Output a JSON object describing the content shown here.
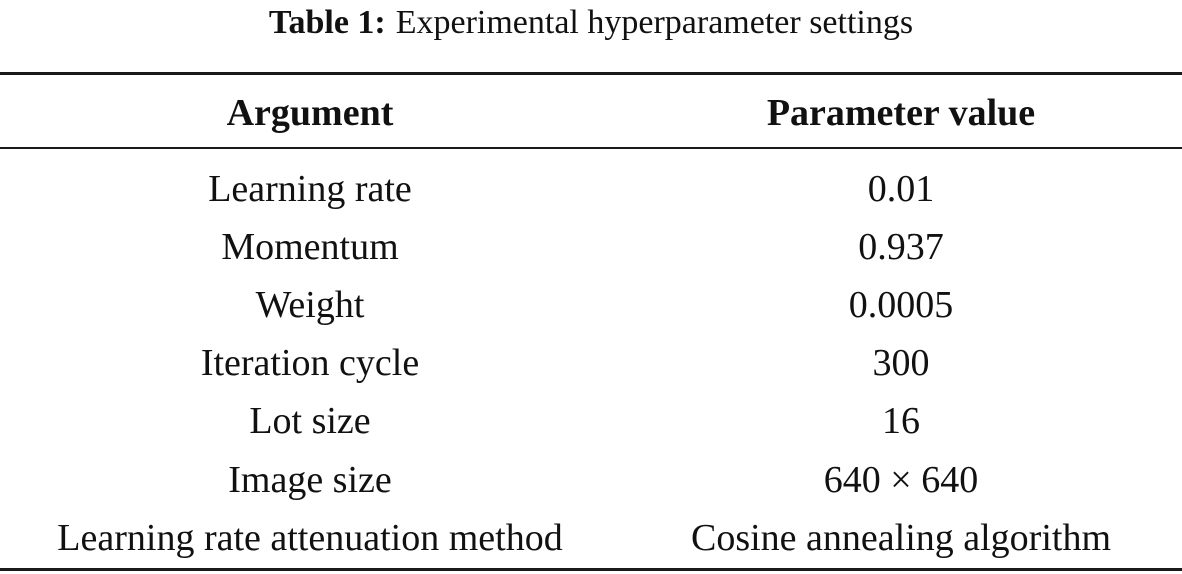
{
  "caption": {
    "label": "Table 1:",
    "title": "Experimental hyperparameter settings"
  },
  "table": {
    "headers": [
      "Argument",
      "Parameter value"
    ],
    "rows": [
      {
        "argument": "Learning rate",
        "value": "0.01"
      },
      {
        "argument": "Momentum",
        "value": "0.937"
      },
      {
        "argument": "Weight",
        "value": "0.0005"
      },
      {
        "argument": "Iteration cycle",
        "value": "300"
      },
      {
        "argument": "Lot size",
        "value": "16"
      },
      {
        "argument": "Image size",
        "value": "640 × 640"
      },
      {
        "argument": "Learning rate attenuation method",
        "value": "Cosine annealing algorithm"
      }
    ]
  }
}
